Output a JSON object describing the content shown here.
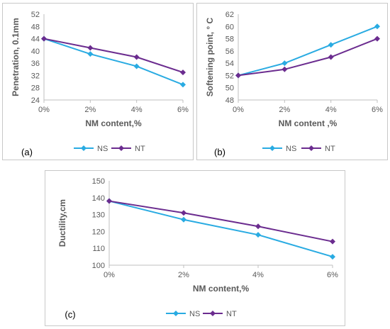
{
  "colors": {
    "NS": "#29abe2",
    "NT": "#6b2c8f",
    "axis": "#bfbfbf",
    "text": "#595959"
  },
  "chart_data": [
    {
      "panel": "(a)",
      "type": "line",
      "categories": [
        "0%",
        "2%",
        "4%",
        "6%"
      ],
      "ylabel": "Penetration, 0.1mm",
      "xlabel": "NM content,%",
      "ylim": [
        24,
        52
      ],
      "yticks": [
        24,
        28,
        32,
        36,
        40,
        44,
        48,
        52
      ],
      "legend_position": "bottom",
      "grid": false,
      "series": [
        {
          "name": "NS",
          "values": [
            44,
            39,
            35,
            29
          ]
        },
        {
          "name": "NT",
          "values": [
            44,
            41,
            38,
            33
          ]
        }
      ]
    },
    {
      "panel": "(b)",
      "type": "line",
      "categories": [
        "0%",
        "2%",
        "4%",
        "6%"
      ],
      "ylabel": "Softening point, ° C",
      "xlabel": "NM content ,%",
      "ylim": [
        48,
        62
      ],
      "yticks": [
        48,
        50,
        52,
        54,
        56,
        58,
        60,
        62
      ],
      "legend_position": "bottom",
      "grid": false,
      "series": [
        {
          "name": "NS",
          "values": [
            52,
            54,
            57,
            60
          ]
        },
        {
          "name": "NT",
          "values": [
            52,
            53,
            55,
            58
          ]
        }
      ]
    },
    {
      "panel": "(c)",
      "type": "line",
      "categories": [
        "0%",
        "2%",
        "4%",
        "6%"
      ],
      "ylabel": "Ductility,cm",
      "xlabel": "NM content,%",
      "ylim": [
        100,
        150
      ],
      "yticks": [
        100,
        110,
        120,
        130,
        140,
        150
      ],
      "legend_position": "bottom",
      "grid": false,
      "series": [
        {
          "name": "NS",
          "values": [
            138,
            127,
            118,
            105
          ]
        },
        {
          "name": "NT",
          "values": [
            138,
            131,
            123,
            114
          ]
        }
      ]
    }
  ]
}
